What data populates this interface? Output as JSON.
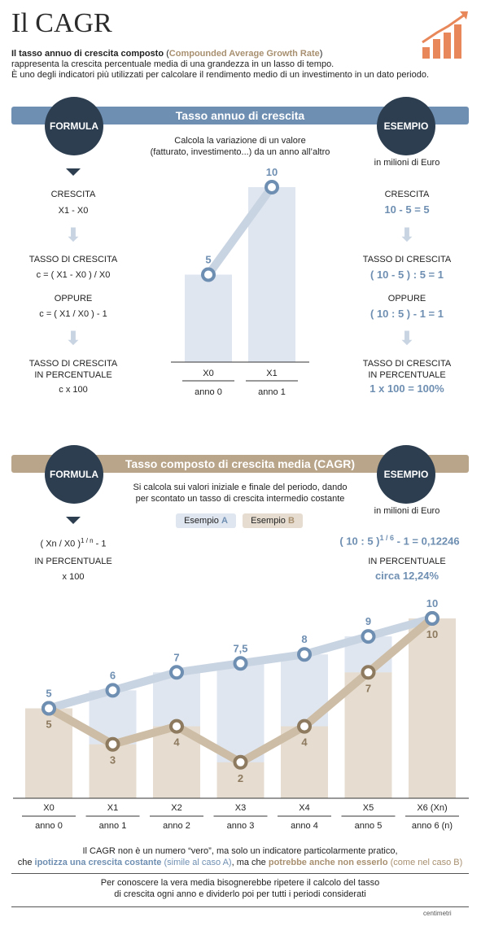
{
  "header": {
    "title": "Il CAGR",
    "intro_bold": "Il tasso annuo di crescita composto",
    "intro_paren_open": " (",
    "intro_english": "Compounded Average Growth Rate",
    "intro_paren_close": ")",
    "intro_line2": "rappresenta la crescita percentuale media di una grandezza in un lasso di tempo.",
    "intro_line3": "È uno degli indicatori più utilizzati per calcolare il rendimento medio di un investimento in un dato periodo."
  },
  "section1": {
    "band_title": "Tasso annuo di crescita",
    "formula_label": "FORMULA",
    "esempio_label": "ESEMPIO",
    "description_line1": "Calcola la variazione di un valore",
    "description_line2": "(fatturato, investimento...) da un anno all’altro",
    "esempio_unit": "in milioni di Euro",
    "left": {
      "crescita_label": "CRESCITA",
      "crescita_formula": "X1 - X0",
      "tasso_label": "TASSO DI CRESCITA",
      "tasso_formula": "c = ( X1 - X0 ) / X0",
      "oppure": "OPPURE",
      "oppure_formula": "c = ( X1 / X0 ) - 1",
      "perc_label_1": "TASSO DI CRESCITA",
      "perc_label_2": "IN PERCENTUALE",
      "perc_formula": "c x 100"
    },
    "right": {
      "crescita_label": "CRESCITA",
      "crescita_value": "10 - 5 = 5",
      "tasso_label": "TASSO DI CRESCITA",
      "tasso_value": "( 10 - 5 ) : 5 = 1",
      "oppure": "OPPURE",
      "oppure_value": "( 10 : 5 ) - 1 = 1",
      "perc_label_1": "TASSO DI CRESCITA",
      "perc_label_2": "IN PERCENTUALE",
      "perc_value": "1 x 100 = 100%"
    }
  },
  "section2": {
    "band_title": "Tasso composto di crescita media (CAGR)",
    "formula_label": "FORMULA",
    "esempio_label": "ESEMPIO",
    "description_line1": "Si calcola sui valori iniziale e finale del periodo, dando",
    "description_line2": "per scontato un tasso di crescita intermedio costante",
    "legend_a_text": "Esempio ",
    "legend_a_letter": "A",
    "legend_b_text": "Esempio ",
    "legend_b_letter": "B",
    "esempio_unit": "in milioni di Euro",
    "left": {
      "formula_base": "( Xn / X0 )",
      "formula_exp": "1 / n",
      "formula_tail": "- 1",
      "perc_label": "IN PERCENTUALE",
      "perc_formula": "x 100"
    },
    "right": {
      "formula_base": "( 10 : 5 )",
      "formula_exp": "1 / 6",
      "formula_tail": "- 1 = 0,12246",
      "perc_label": "IN PERCENTUALE",
      "perc_value": "circa 12,24%"
    }
  },
  "footer": {
    "note1_line1": "Il CAGR non è un numero “vero”, ma solo un indicatore particolarmente pratico,",
    "note1_l2_a": "che ",
    "note1_l2_b": "ipotizza una crescita costante",
    "note1_l2_c": " (simile al caso A)",
    "note1_l2_d": ", ma che ",
    "note1_l2_e": "potrebbe anche non esserlo",
    "note1_l2_f": " (come nel caso B)",
    "note2_line1": "Per conoscere la vera media bisognerebbe ripetere il calcolo del tasso",
    "note2_line2": "di crescita ogni anno e dividerlo poi per tutti i periodi considerati",
    "credit": "centimetri"
  },
  "colors": {
    "blue_dark": "#2c3e50",
    "blue_mid": "#6f8fb2",
    "blue_light": "#dfe6f0",
    "tan": "#b9a58a",
    "tan_dark": "#8d7a5f",
    "tan_light": "#e6ddd0"
  },
  "chart_data": [
    {
      "type": "bar",
      "categories": [
        "X0",
        "X1"
      ],
      "category_sublabels": [
        "anno 0",
        "anno 1"
      ],
      "values": [
        5,
        10
      ],
      "value_labels": [
        "5",
        "10"
      ],
      "ylim": [
        0,
        10
      ]
    },
    {
      "type": "bar",
      "categories": [
        "X0",
        "X1",
        "X2",
        "X3",
        "X4",
        "X5",
        "X6 (Xn)"
      ],
      "category_sublabels": [
        "anno 0",
        "anno 1",
        "anno 2",
        "anno 3",
        "anno 4",
        "anno 5",
        "anno 6 (n)"
      ],
      "series": [
        {
          "name": "Esempio A",
          "values": [
            5,
            6,
            7,
            7.5,
            8,
            9,
            10
          ],
          "value_labels": [
            "5",
            "6",
            "7",
            "7,5",
            "8",
            "9",
            "10"
          ]
        },
        {
          "name": "Esempio B",
          "values": [
            5,
            3,
            4,
            2,
            4,
            7,
            10
          ],
          "value_labels": [
            "5",
            "3",
            "4",
            "2",
            "4",
            "7",
            "10"
          ]
        }
      ],
      "ylim": [
        0,
        10
      ]
    }
  ]
}
